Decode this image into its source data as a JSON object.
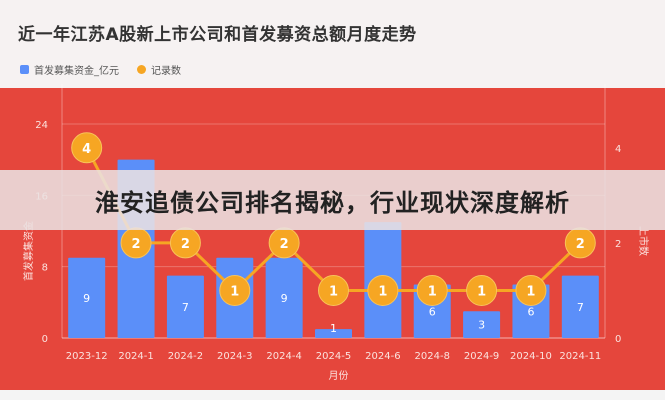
{
  "header": {
    "title": "近一年江苏A股新上市公司和首发募资总额月度走势"
  },
  "legend": [
    {
      "label": "首发募集资金_亿元",
      "color": "#5b8ff9"
    },
    {
      "label": "记录数",
      "color": "#f6a623"
    }
  ],
  "banner": {
    "text": "淮安追债公司排名揭秘，行业现状深度解析"
  },
  "chart_data": {
    "type": "bar",
    "categories": [
      "2023-12",
      "2024-1",
      "2024-2",
      "2024-3",
      "2024-4",
      "2024-5",
      "2024-6",
      "2024-8",
      "2024-9",
      "2024-10",
      "2024-11"
    ],
    "series": [
      {
        "name": "首发募集资金_亿元",
        "type": "bar",
        "axis": "left",
        "color": "#5b8ff9",
        "values": [
          9,
          20,
          7,
          9,
          9,
          1,
          13,
          6,
          3,
          6,
          7
        ]
      },
      {
        "name": "记录数",
        "type": "line",
        "axis": "right",
        "color": "#f6a623",
        "values": [
          4,
          2,
          2,
          1,
          2,
          1,
          1,
          1,
          1,
          1,
          2
        ]
      }
    ],
    "left_axis": {
      "label": "首发募集资金",
      "ticks": [
        0,
        8,
        16,
        24
      ],
      "ylim": [
        0,
        24
      ]
    },
    "right_axis": {
      "label": "上市数",
      "ticks": [
        0,
        2,
        4
      ],
      "ylim": [
        0,
        4.5
      ]
    },
    "xlabel": "月份",
    "legend_position": "top-left",
    "grid": true
  }
}
